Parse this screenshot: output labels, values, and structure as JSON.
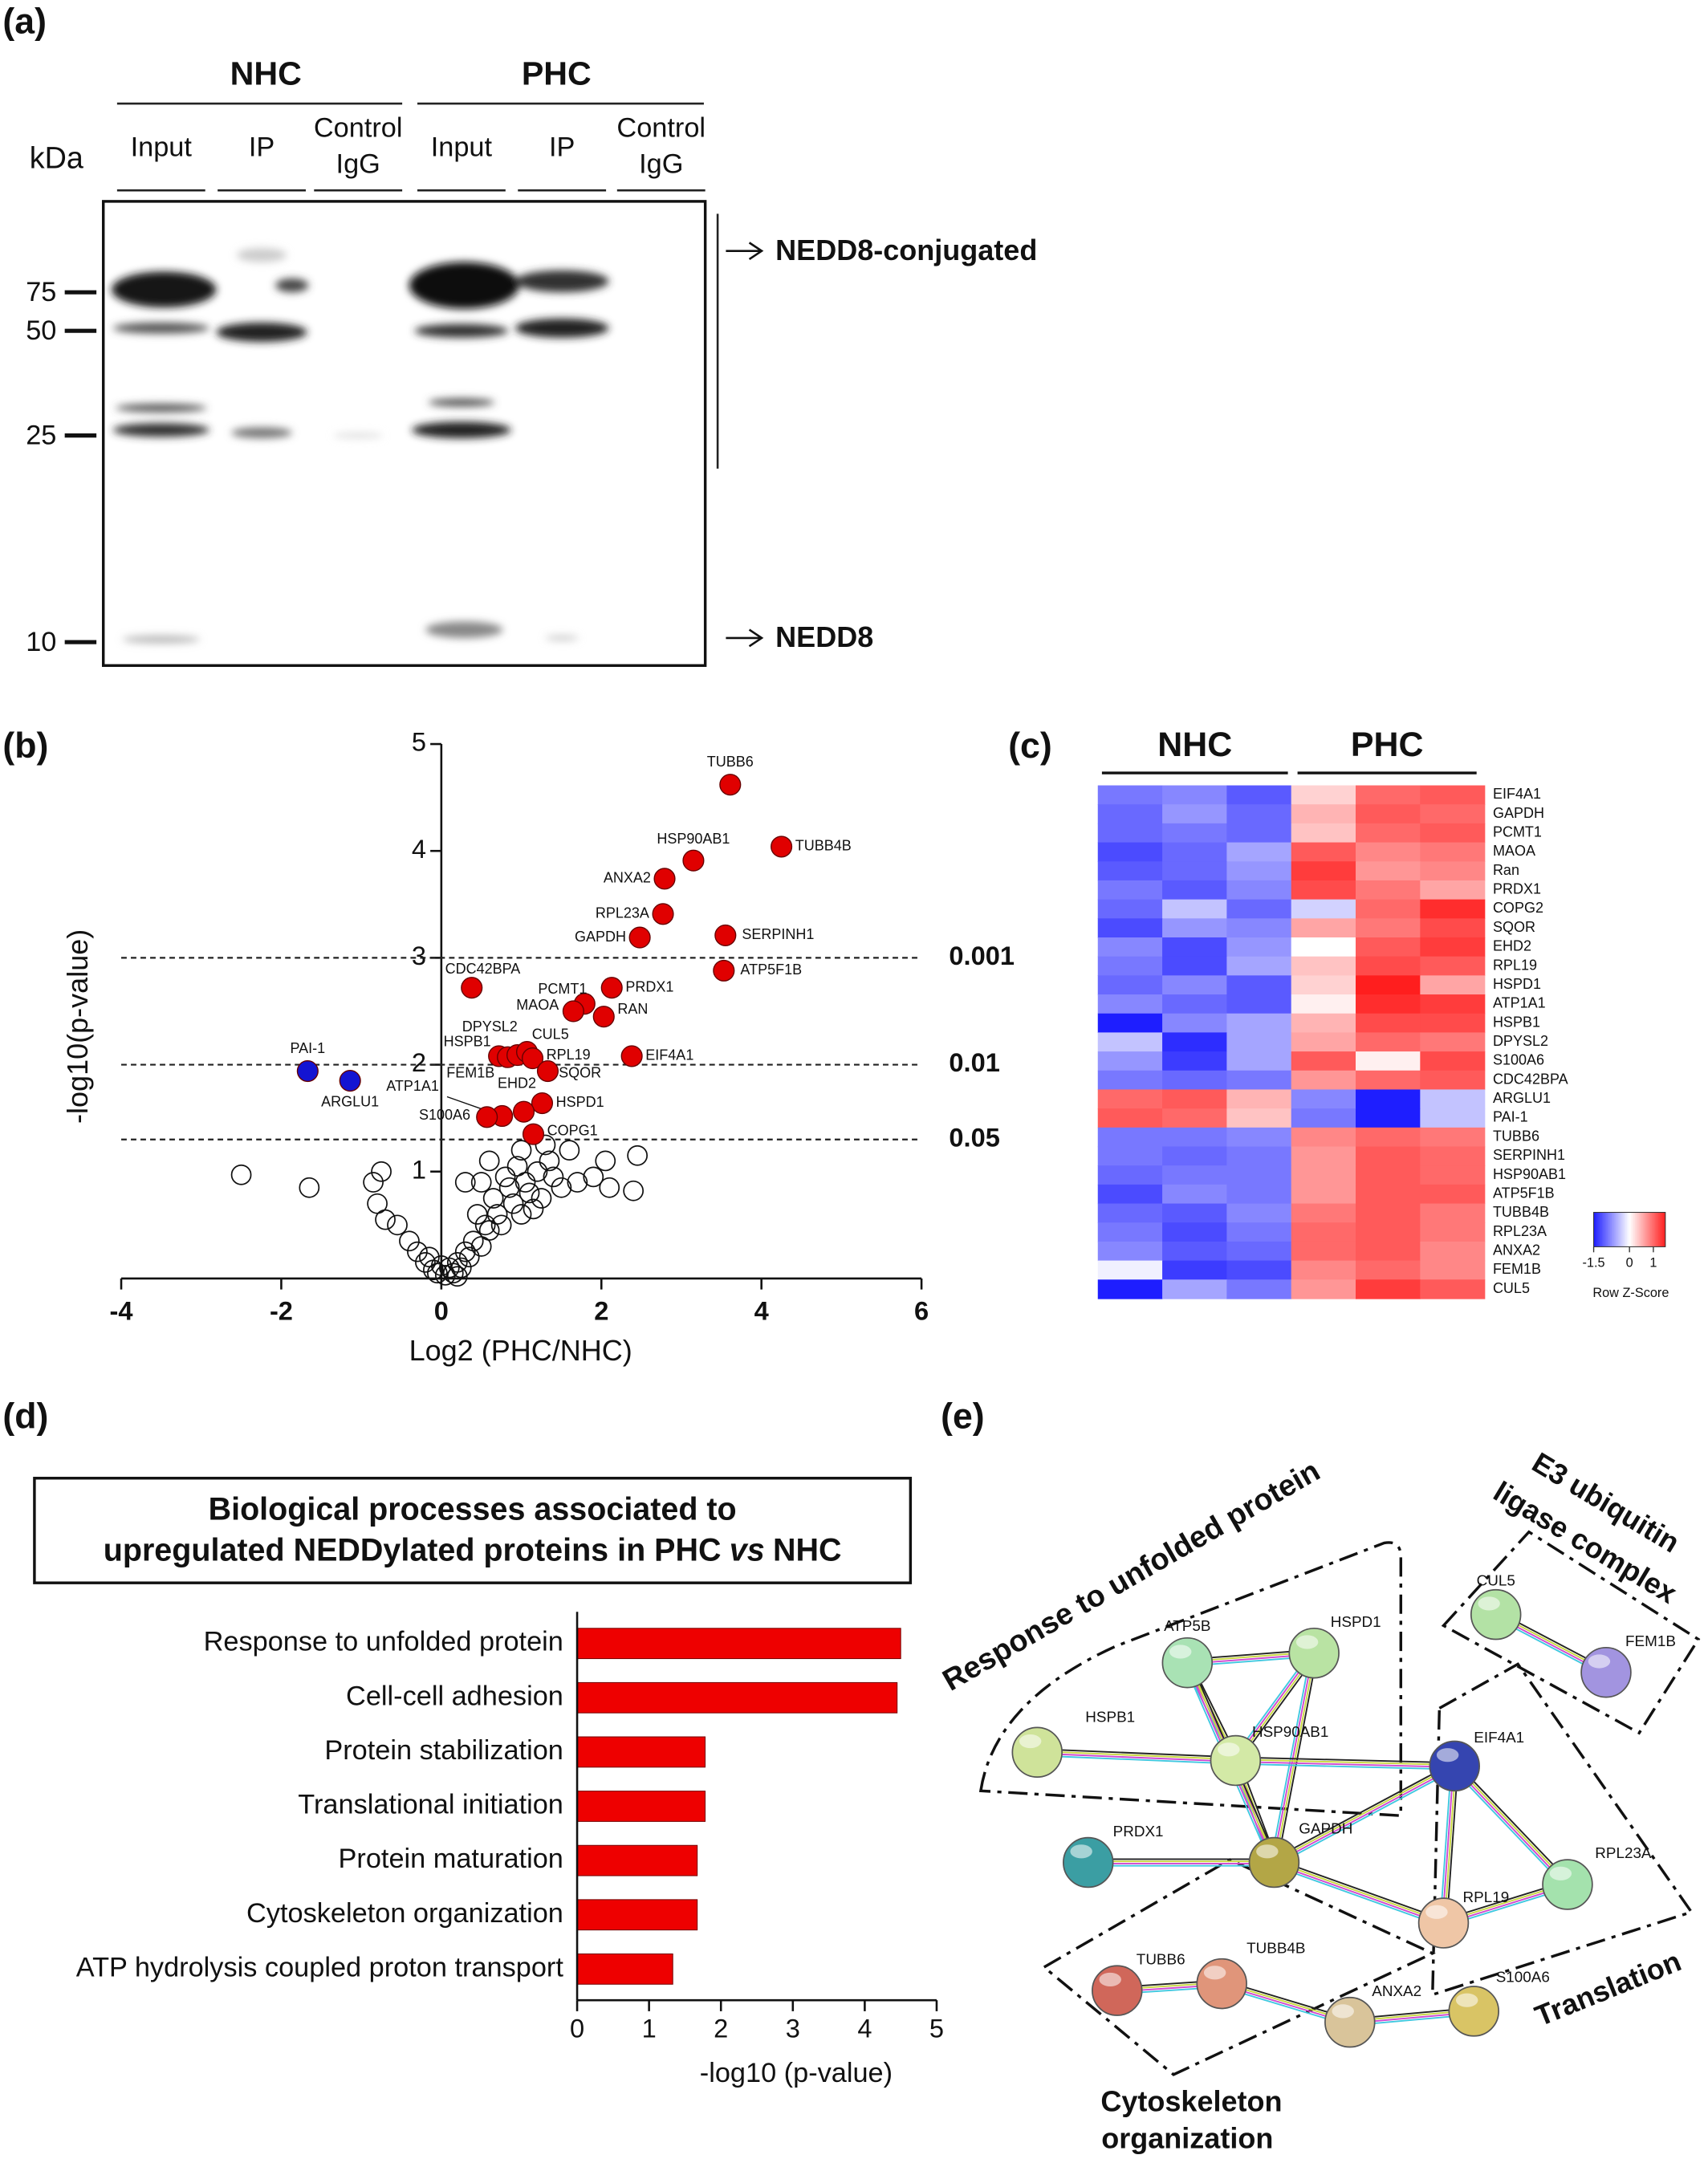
{
  "panel_labels": [
    "(a)",
    "(b)",
    "(c)",
    "(d)",
    "(e)"
  ],
  "blot": {
    "groups": [
      "NHC",
      "PHC"
    ],
    "lanes": [
      [
        "Input"
      ],
      [
        "IP"
      ],
      [
        "Control",
        "IgG"
      ],
      [
        "Input"
      ],
      [
        "IP"
      ],
      [
        "Control",
        "IgG"
      ]
    ],
    "unit": "kDa",
    "markers": [
      75,
      50,
      25,
      10
    ],
    "annotations": [
      "NEDD8-conjugated",
      "NEDD8"
    ]
  },
  "chart_data": [
    {
      "type": "scatter",
      "xlabel": "Log2 (PHC/NHC)",
      "ylabel": "-log10(p-value)",
      "xlim": [
        -4,
        6
      ],
      "ylim": [
        0,
        5
      ],
      "xticks": [
        -4,
        -2,
        0,
        2,
        4,
        6
      ],
      "yticks": [
        1,
        2,
        3,
        4,
        5
      ],
      "thresholds": [
        {
          "value": 3,
          "label": "0.001"
        },
        {
          "value": 2,
          "label": "0.01"
        },
        {
          "value": 1.3,
          "label": "0.05"
        }
      ],
      "series": [
        {
          "color": "#e00000",
          "labels": [
            "TUBB6",
            "TUBB4B",
            "HSP90AB1",
            "ANXA2",
            "RPL23A",
            "SERPINH1",
            "GAPDH",
            "ATP5F1B",
            "CDC42BPA",
            "PRDX1",
            "PCMT1",
            "MAOA",
            "RAN",
            "HSPB1",
            "FEM1B",
            "DPYSL2",
            "CUL5",
            "RPL19",
            "SQOR",
            "EIF4A1",
            "HSPD1",
            "EHD2",
            "ATP1A1",
            "S100A6",
            "COPG1"
          ],
          "x": [
            3.61,
            4.25,
            3.15,
            2.79,
            2.77,
            3.55,
            2.48,
            3.53,
            0.38,
            2.13,
            1.79,
            1.65,
            2.03,
            0.72,
            0.83,
            0.95,
            1.07,
            1.14,
            1.33,
            2.38,
            1.26,
            1.03,
            0.76,
            0.57,
            1.15
          ],
          "y": [
            4.62,
            4.04,
            3.91,
            3.74,
            3.41,
            3.21,
            3.19,
            2.88,
            2.72,
            2.72,
            2.57,
            2.5,
            2.45,
            2.08,
            2.07,
            2.09,
            2.12,
            2.06,
            1.94,
            2.08,
            1.64,
            1.56,
            1.52,
            1.51,
            1.35
          ]
        },
        {
          "color": "#1414d2",
          "labels": [
            "PAI-1",
            "ARGLU1"
          ],
          "x": [
            -1.67,
            -1.14
          ],
          "y": [
            1.94,
            1.85
          ]
        },
        {
          "color": "none",
          "x": [
            -2.5,
            -1.65,
            -0.85,
            -0.75,
            -0.8,
            -0.7,
            -0.55,
            -0.4,
            -0.3,
            -0.2,
            -0.1,
            -0.05,
            2.4,
            2.45,
            2.05,
            2.1,
            1.9,
            1.7,
            1.5,
            1.6,
            1.3,
            1.0,
            0.6,
            0.3,
            0.5,
            0.8,
            1.2,
            1.1,
            0.9,
            0.7,
            0.6,
            0.4,
            0.3,
            0.2,
            0.1,
            0.05,
            0.15,
            0.25,
            0.35,
            0.5,
            0.55,
            0.75,
            1.0,
            0.85,
            1.15,
            1.4,
            0.95,
            1.25,
            -0.15,
            0,
            0.45,
            0.65,
            1.05,
            1.35,
            0.2
          ],
          "y": [
            0.97,
            0.85,
            0.9,
            1.0,
            0.7,
            0.55,
            0.5,
            0.35,
            0.25,
            0.15,
            0.08,
            0.05,
            0.82,
            1.15,
            1.1,
            0.85,
            0.95,
            0.9,
            0.85,
            1.2,
            1.25,
            1.2,
            1.1,
            0.9,
            0.9,
            0.95,
            1.0,
            0.8,
            0.7,
            0.6,
            0.45,
            0.35,
            0.25,
            0.15,
            0.1,
            0.03,
            0.05,
            0.1,
            0.2,
            0.3,
            0.5,
            0.5,
            0.6,
            0.85,
            0.65,
            0.95,
            1.05,
            0.75,
            0.2,
            0.12,
            0.6,
            0.75,
            0.9,
            1.1,
            0.02
          ]
        }
      ]
    },
    {
      "type": "heatmap",
      "column_groups": [
        "NHC",
        "PHC"
      ],
      "rows": [
        "EIF4A1",
        "GAPDH",
        "PCMT1",
        "MAOA",
        "Ran",
        "PRDX1",
        "COPG2",
        "SQOR",
        "EHD2",
        "RPL19",
        "HSPD1",
        "ATP1A1",
        "HSPB1",
        "DPYSL2",
        "S100A6",
        "CDC42BPA",
        "ARGLU1",
        "PAI-1",
        "TUBB6",
        "SERPINH1",
        "HSP90AB1",
        "ATP5F1B",
        "TUBB4B",
        "RPL23A",
        "ANXA2",
        "FEM1B",
        "CUL5"
      ],
      "values": [
        [
          -0.9,
          -0.8,
          -1.1,
          0.3,
          1.0,
          1.1
        ],
        [
          -1.0,
          -0.7,
          -1.0,
          0.5,
          1.1,
          1.0
        ],
        [
          -1.0,
          -0.9,
          -1.0,
          0.4,
          1.0,
          1.1
        ],
        [
          -1.2,
          -1.0,
          -0.6,
          1.1,
          0.8,
          0.9
        ],
        [
          -1.1,
          -1.0,
          -0.7,
          1.3,
          0.7,
          0.8
        ],
        [
          -0.9,
          -1.1,
          -0.8,
          1.2,
          0.9,
          0.6
        ],
        [
          -1.0,
          -0.4,
          -1.0,
          -0.3,
          1.0,
          1.4
        ],
        [
          -1.2,
          -0.7,
          -0.8,
          0.6,
          0.9,
          1.2
        ],
        [
          -0.8,
          -1.2,
          -0.7,
          0.0,
          1.1,
          1.3
        ],
        [
          -0.9,
          -1.2,
          -0.6,
          0.4,
          1.2,
          1.1
        ],
        [
          -1.0,
          -0.8,
          -1.1,
          0.3,
          1.5,
          0.6
        ],
        [
          -0.8,
          -1.0,
          -1.1,
          0.1,
          1.4,
          1.3
        ],
        [
          -1.5,
          -0.8,
          -0.6,
          0.5,
          1.2,
          1.2
        ],
        [
          -0.4,
          -1.4,
          -0.6,
          0.6,
          1.0,
          0.9
        ],
        [
          -0.7,
          -1.3,
          -0.6,
          1.1,
          0.1,
          1.2
        ],
        [
          -0.9,
          -1.0,
          -0.9,
          0.7,
          1.0,
          1.1
        ],
        [
          1.0,
          1.1,
          0.5,
          -0.8,
          -1.5,
          -0.4
        ],
        [
          1.1,
          1.0,
          0.4,
          -0.9,
          -1.5,
          -0.4
        ],
        [
          -0.9,
          -0.9,
          -0.8,
          0.8,
          1.0,
          0.9
        ],
        [
          -0.9,
          -1.0,
          -0.9,
          0.7,
          1.1,
          1.0
        ],
        [
          -1.0,
          -0.9,
          -0.9,
          0.7,
          1.1,
          1.0
        ],
        [
          -1.2,
          -0.8,
          -0.9,
          0.7,
          1.1,
          1.1
        ],
        [
          -1.0,
          -1.1,
          -0.8,
          0.9,
          1.1,
          0.9
        ],
        [
          -0.9,
          -1.2,
          -0.9,
          1.0,
          1.1,
          0.9
        ],
        [
          -0.8,
          -1.1,
          -1.0,
          1.0,
          1.1,
          0.8
        ],
        [
          -0.1,
          -1.3,
          -1.2,
          0.8,
          1.0,
          0.8
        ],
        [
          -1.5,
          -0.6,
          -0.9,
          0.7,
          1.3,
          1.1
        ]
      ],
      "clim": [
        -1.5,
        1.5
      ],
      "colorbar_ticks": [
        -1.5,
        0,
        1
      ],
      "colorbar_label": "Row Z-Score"
    },
    {
      "type": "bar",
      "orientation": "horizontal",
      "title": [
        "Biological processes associated to",
        "upregulated NEDDylated proteins in PHC",
        "vs",
        "NHC"
      ],
      "categories": [
        "Response to unfolded protein",
        "Cell-cell adhesion",
        "Protein stabilization",
        "Translational initiation",
        "Protein maturation",
        "Cytoskeleton organization",
        "ATP hydrolysis coupled proton transport"
      ],
      "values": [
        4.5,
        4.45,
        1.78,
        1.78,
        1.67,
        1.67,
        1.33
      ],
      "color": "#ee0000",
      "xlim": [
        0,
        5
      ],
      "xticks": [
        0,
        1,
        2,
        3,
        4,
        5
      ],
      "xlabel": "-log10 (p-value)"
    }
  ],
  "network": {
    "groups": [
      [
        "Response to unfolded protein"
      ],
      [
        "E3 ubiquitin",
        "ligase complex"
      ],
      [
        "Translation"
      ],
      [
        "Cytoskeleton",
        "organization"
      ]
    ],
    "nodes": [
      {
        "label": "HSPB1",
        "color": "#cfe39a"
      },
      {
        "label": "ATP5B",
        "color": "#a9e2b4"
      },
      {
        "label": "HSPD1",
        "color": "#b9e3a3"
      },
      {
        "label": "HSP90AB1",
        "color": "#d3e9a6"
      },
      {
        "label": "PRDX1",
        "color": "#3b9ea3"
      },
      {
        "label": "GAPDH",
        "color": "#b3a646"
      },
      {
        "label": "EIF4A1",
        "color": "#3545b0"
      },
      {
        "label": "RPL23A",
        "color": "#a4e2ad"
      },
      {
        "label": "RPL19",
        "color": "#efc6a6"
      },
      {
        "label": "CUL5",
        "color": "#b3e2a5"
      },
      {
        "label": "FEM1B",
        "color": "#a294e0"
      },
      {
        "label": "TUBB6",
        "color": "#d0675a"
      },
      {
        "label": "TUBB4B",
        "color": "#e0957a"
      },
      {
        "label": "ANXA2",
        "color": "#d9c49a"
      },
      {
        "label": "S100A6",
        "color": "#d9c465"
      }
    ]
  }
}
